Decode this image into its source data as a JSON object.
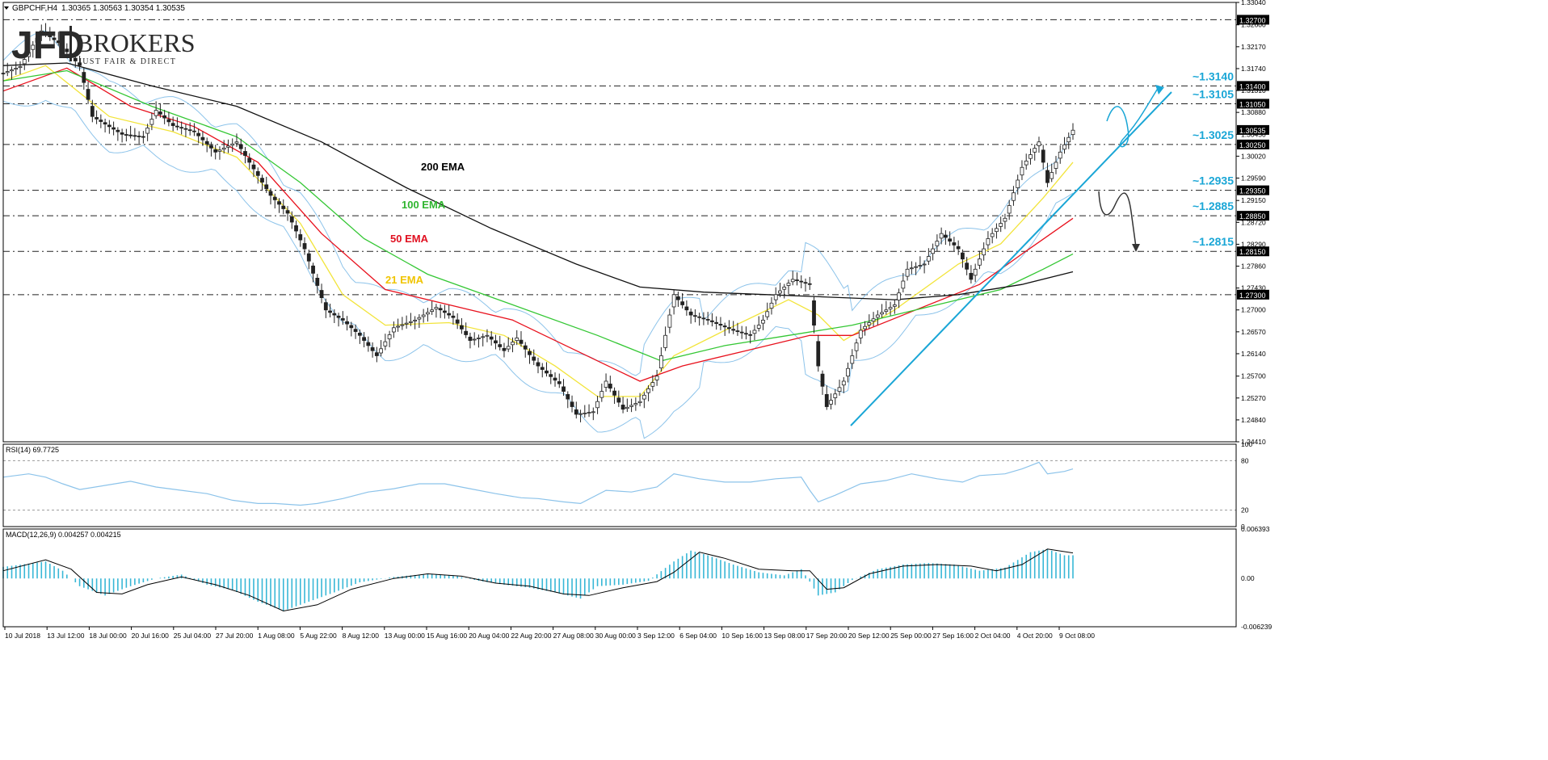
{
  "header": {
    "symbol": "GBPCHF,H4",
    "ohlc": "1.30365 1.30563 1.30354 1.30535",
    "menu_arrow": "triangle-down-icon"
  },
  "logo": {
    "jfd": "JFD",
    "brokers": "BROKERS",
    "tagline": "JUST FAIR & DIRECT"
  },
  "colors": {
    "bull": "#4a4a4a",
    "bear": "#222222",
    "ema21": "#f2e43a",
    "ema50": "#e8101c",
    "ema100": "#34c734",
    "ema200": "#111111",
    "bands": "#8cc3ea",
    "level_label": "#1aa6d6",
    "trendline": "#1aa6d6",
    "price_tag": "#000000",
    "macd_hist": "#38b7d6"
  },
  "chart_data": [
    {
      "type": "line",
      "title": "GBPCHF,H4",
      "ylim": [
        1.2441,
        1.3304
      ],
      "y_ticks": [
        "1.33040",
        "1.32600",
        "1.32170",
        "1.31740",
        "1.31310",
        "1.30880",
        "1.30450",
        "1.30020",
        "1.29590",
        "1.29150",
        "1.28720",
        "1.28290",
        "1.27860",
        "1.27430",
        "1.27000",
        "1.26570",
        "1.26140",
        "1.25700",
        "1.25270",
        "1.24840",
        "1.24410"
      ],
      "x_ticks": [
        "10 Jul 2018",
        "13 Jul 12:00",
        "18 Jul 00:00",
        "20 Jul 16:00",
        "25 Jul 04:00",
        "27 Jul 20:00",
        "1 Aug 08:00",
        "5 Aug 22:00",
        "8 Aug 12:00",
        "13 Aug 00:00",
        "15 Aug 16:00",
        "20 Aug 04:00",
        "22 Aug 20:00",
        "27 Aug 08:00",
        "30 Aug 00:00",
        "3 Sep 12:00",
        "6 Sep 04:00",
        "10 Sep 16:00",
        "13 Sep 08:00",
        "17 Sep 20:00",
        "20 Sep 12:00",
        "25 Sep 00:00",
        "27 Sep 16:00",
        "2 Oct 04:00",
        "4 Oct 20:00",
        "9 Oct 08:00"
      ],
      "price_path": [
        [
          0,
          1.3165
        ],
        [
          4,
          1.3178
        ],
        [
          9,
          1.3248
        ],
        [
          13,
          1.3225
        ],
        [
          18,
          1.318
        ],
        [
          21,
          1.308
        ],
        [
          28,
          1.3045
        ],
        [
          33,
          1.304
        ],
        [
          36,
          1.3092
        ],
        [
          40,
          1.3062
        ],
        [
          45,
          1.305
        ],
        [
          50,
          1.301
        ],
        [
          55,
          1.303
        ],
        [
          58,
          1.299
        ],
        [
          63,
          1.2925
        ],
        [
          67,
          1.289
        ],
        [
          71,
          1.282
        ],
        [
          76,
          1.27
        ],
        [
          80,
          1.268
        ],
        [
          84,
          1.265
        ],
        [
          88,
          1.261
        ],
        [
          92,
          1.2665
        ],
        [
          97,
          1.268
        ],
        [
          102,
          1.2705
        ],
        [
          106,
          1.2685
        ],
        [
          110,
          1.264
        ],
        [
          114,
          1.265
        ],
        [
          118,
          1.262
        ],
        [
          121,
          1.2645
        ],
        [
          126,
          1.259
        ],
        [
          131,
          1.2555
        ],
        [
          135,
          1.2495
        ],
        [
          139,
          1.25
        ],
        [
          142,
          1.256
        ],
        [
          146,
          1.2505
        ],
        [
          150,
          1.252
        ],
        [
          154,
          1.257
        ],
        [
          158,
          1.273
        ],
        [
          162,
          1.269
        ],
        [
          166,
          1.268
        ],
        [
          172,
          1.266
        ],
        [
          176,
          1.265
        ],
        [
          179,
          1.268
        ],
        [
          182,
          1.273
        ],
        [
          186,
          1.276
        ],
        [
          190,
          1.275
        ],
        [
          192,
          1.259
        ],
        [
          194,
          1.251
        ],
        [
          198,
          1.256
        ],
        [
          202,
          1.266
        ],
        [
          206,
          1.269
        ],
        [
          210,
          1.271
        ],
        [
          213,
          1.278
        ],
        [
          217,
          1.279
        ],
        [
          221,
          1.285
        ],
        [
          225,
          1.282
        ],
        [
          228,
          1.276
        ],
        [
          232,
          1.284
        ],
        [
          236,
          1.288
        ],
        [
          240,
          1.298
        ],
        [
          244,
          1.303
        ],
        [
          246,
          1.295
        ],
        [
          249,
          1.301
        ],
        [
          252,
          1.3053
        ]
      ],
      "series": [
        {
          "name": "21 EMA",
          "values": [
            [
              0,
              1.315
            ],
            [
              10,
              1.318
            ],
            [
              25,
              1.308
            ],
            [
              40,
              1.305
            ],
            [
              55,
              1.3
            ],
            [
              70,
              1.287
            ],
            [
              80,
              1.273
            ],
            [
              90,
              1.267
            ],
            [
              105,
              1.2675
            ],
            [
              118,
              1.265
            ],
            [
              130,
              1.259
            ],
            [
              140,
              1.253
            ],
            [
              150,
              1.253
            ],
            [
              158,
              1.261
            ],
            [
              170,
              1.266
            ],
            [
              185,
              1.272
            ],
            [
              192,
              1.269
            ],
            [
              198,
              1.264
            ],
            [
              210,
              1.27
            ],
            [
              225,
              1.279
            ],
            [
              235,
              1.283
            ],
            [
              245,
              1.292
            ],
            [
              252,
              1.299
            ]
          ]
        },
        {
          "name": "50 EMA",
          "values": [
            [
              0,
              1.313
            ],
            [
              15,
              1.3175
            ],
            [
              30,
              1.31
            ],
            [
              45,
              1.306
            ],
            [
              60,
              1.299
            ],
            [
              75,
              1.285
            ],
            [
              90,
              1.274
            ],
            [
              105,
              1.271
            ],
            [
              120,
              1.268
            ],
            [
              135,
              1.262
            ],
            [
              150,
              1.256
            ],
            [
              160,
              1.259
            ],
            [
              175,
              1.262
            ],
            [
              190,
              1.265
            ],
            [
              200,
              1.265
            ],
            [
              215,
              1.27
            ],
            [
              230,
              1.275
            ],
            [
              240,
              1.281
            ],
            [
              252,
              1.288
            ]
          ]
        },
        {
          "name": "100 EMA",
          "values": [
            [
              0,
              1.315
            ],
            [
              15,
              1.317
            ],
            [
              35,
              1.31
            ],
            [
              55,
              1.304
            ],
            [
              70,
              1.295
            ],
            [
              85,
              1.284
            ],
            [
              100,
              1.277
            ],
            [
              120,
              1.271
            ],
            [
              140,
              1.265
            ],
            [
              155,
              1.26
            ],
            [
              170,
              1.263
            ],
            [
              185,
              1.265
            ],
            [
              200,
              1.267
            ],
            [
              220,
              1.271
            ],
            [
              235,
              1.274
            ],
            [
              245,
              1.278
            ],
            [
              252,
              1.281
            ]
          ]
        },
        {
          "name": "200 EMA",
          "values": [
            [
              0,
              1.318
            ],
            [
              15,
              1.3185
            ],
            [
              35,
              1.314
            ],
            [
              55,
              1.31
            ],
            [
              75,
              1.303
            ],
            [
              95,
              1.294
            ],
            [
              115,
              1.286
            ],
            [
              135,
              1.279
            ],
            [
              150,
              1.2745
            ],
            [
              165,
              1.2735
            ],
            [
              180,
              1.273
            ],
            [
              195,
              1.2725
            ],
            [
              210,
              1.272
            ],
            [
              225,
              1.273
            ],
            [
              240,
              1.275
            ],
            [
              252,
              1.2775
            ]
          ]
        }
      ],
      "levels": [
        {
          "value": 1.327,
          "tag": "1.32700",
          "label": ""
        },
        {
          "value": 1.314,
          "tag": "1.31400",
          "label": "~1.3140"
        },
        {
          "value": 1.3105,
          "tag": "1.31050",
          "label": "~1.3105"
        },
        {
          "value": 1.3025,
          "tag": "1.30250",
          "label": "~1.3025"
        },
        {
          "value": 1.2935,
          "tag": "1.29350",
          "label": "~1.2935"
        },
        {
          "value": 1.2885,
          "tag": "1.28850",
          "label": "~1.2885"
        },
        {
          "value": 1.2815,
          "tag": "1.28150",
          "label": "~1.2815"
        },
        {
          "value": 1.273,
          "tag": "1.27300",
          "label": ""
        }
      ],
      "current_price_tag": "1.30535",
      "annotations": [
        "200 EMA",
        "100 EMA",
        "50 EMA",
        "21 EMA"
      ]
    },
    {
      "type": "line",
      "title": "RSI(14) 69.7725",
      "ylim": [
        0,
        100
      ],
      "y_ticks": [
        "100",
        "80",
        "20",
        "0"
      ],
      "levels": [
        80,
        20
      ],
      "values": [
        [
          0,
          60
        ],
        [
          6,
          64
        ],
        [
          10,
          60
        ],
        [
          14,
          52
        ],
        [
          18,
          45
        ],
        [
          24,
          50
        ],
        [
          30,
          55
        ],
        [
          36,
          48
        ],
        [
          42,
          44
        ],
        [
          48,
          40
        ],
        [
          54,
          32
        ],
        [
          60,
          28
        ],
        [
          64,
          28
        ],
        [
          70,
          26
        ],
        [
          74,
          28
        ],
        [
          80,
          34
        ],
        [
          86,
          42
        ],
        [
          92,
          46
        ],
        [
          98,
          52
        ],
        [
          104,
          52
        ],
        [
          110,
          46
        ],
        [
          116,
          40
        ],
        [
          122,
          35
        ],
        [
          126,
          34
        ],
        [
          132,
          30
        ],
        [
          136,
          28
        ],
        [
          142,
          44
        ],
        [
          148,
          42
        ],
        [
          154,
          48
        ],
        [
          158,
          64
        ],
        [
          164,
          58
        ],
        [
          170,
          54
        ],
        [
          176,
          54
        ],
        [
          182,
          58
        ],
        [
          188,
          60
        ],
        [
          190,
          44
        ],
        [
          192,
          30
        ],
        [
          196,
          38
        ],
        [
          202,
          52
        ],
        [
          208,
          56
        ],
        [
          214,
          64
        ],
        [
          220,
          58
        ],
        [
          226,
          54
        ],
        [
          230,
          62
        ],
        [
          236,
          64
        ],
        [
          240,
          70
        ],
        [
          244,
          78
        ],
        [
          246,
          64
        ],
        [
          250,
          67
        ],
        [
          252,
          70
        ]
      ]
    },
    {
      "type": "bar",
      "title": "MACD(12,26,9) 0.004257 0.004215",
      "ylim": [
        -0.006239,
        0.006393
      ],
      "y_ticks": [
        "0.006393",
        "0.00",
        "-0.006239"
      ],
      "histogram": [
        [
          0,
          0.0015
        ],
        [
          10,
          0.0022
        ],
        [
          14,
          0.001
        ],
        [
          18,
          -0.001
        ],
        [
          24,
          -0.0022
        ],
        [
          30,
          -0.001
        ],
        [
          36,
          0.0
        ],
        [
          42,
          0.0005
        ],
        [
          48,
          -0.0008
        ],
        [
          54,
          -0.0015
        ],
        [
          60,
          -0.003
        ],
        [
          66,
          -0.0042
        ],
        [
          72,
          -0.003
        ],
        [
          78,
          -0.0018
        ],
        [
          84,
          -0.0005
        ],
        [
          92,
          0.0002
        ],
        [
          100,
          0.0006
        ],
        [
          106,
          0.0004
        ],
        [
          112,
          -0.0003
        ],
        [
          118,
          -0.0008
        ],
        [
          124,
          -0.0012
        ],
        [
          130,
          -0.0018
        ],
        [
          136,
          -0.0026
        ],
        [
          140,
          -0.001
        ],
        [
          146,
          -0.0008
        ],
        [
          152,
          -0.0003
        ],
        [
          158,
          0.0022
        ],
        [
          162,
          0.0036
        ],
        [
          166,
          0.003
        ],
        [
          172,
          0.0018
        ],
        [
          178,
          0.0008
        ],
        [
          184,
          0.0004
        ],
        [
          188,
          0.0012
        ],
        [
          190,
          -0.0004
        ],
        [
          192,
          -0.0022
        ],
        [
          196,
          -0.0018
        ],
        [
          200,
          -0.0002
        ],
        [
          206,
          0.0012
        ],
        [
          212,
          0.0018
        ],
        [
          218,
          0.002
        ],
        [
          224,
          0.0018
        ],
        [
          230,
          0.001
        ],
        [
          236,
          0.0014
        ],
        [
          242,
          0.0034
        ],
        [
          246,
          0.0038
        ],
        [
          250,
          0.003
        ],
        [
          252,
          0.003
        ]
      ],
      "signal": [
        [
          0,
          0.001
        ],
        [
          10,
          0.0024
        ],
        [
          16,
          0.0012
        ],
        [
          22,
          -0.0018
        ],
        [
          28,
          -0.002
        ],
        [
          34,
          -0.0008
        ],
        [
          42,
          0.0002
        ],
        [
          50,
          -0.0008
        ],
        [
          58,
          -0.0022
        ],
        [
          66,
          -0.0042
        ],
        [
          74,
          -0.0034
        ],
        [
          82,
          -0.0014
        ],
        [
          92,
          0.0
        ],
        [
          100,
          0.0006
        ],
        [
          108,
          0.0003
        ],
        [
          116,
          -0.0006
        ],
        [
          124,
          -0.001
        ],
        [
          132,
          -0.002
        ],
        [
          138,
          -0.0022
        ],
        [
          146,
          -0.0012
        ],
        [
          154,
          -0.0004
        ],
        [
          158,
          0.0008
        ],
        [
          164,
          0.0034
        ],
        [
          170,
          0.0026
        ],
        [
          178,
          0.0012
        ],
        [
          186,
          0.001
        ],
        [
          190,
          0.001
        ],
        [
          194,
          -0.0014
        ],
        [
          198,
          -0.0012
        ],
        [
          204,
          0.0006
        ],
        [
          212,
          0.0016
        ],
        [
          220,
          0.0018
        ],
        [
          228,
          0.0016
        ],
        [
          234,
          0.001
        ],
        [
          240,
          0.0018
        ],
        [
          246,
          0.0038
        ],
        [
          252,
          0.0033
        ]
      ]
    }
  ]
}
